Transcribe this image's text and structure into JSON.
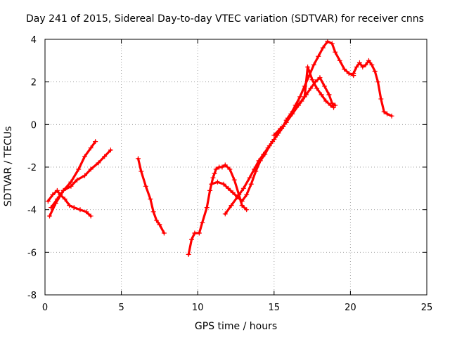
{
  "chart_data": {
    "type": "scatter",
    "title": "Day 241 of 2015, Sidereal Day-to-day VTEC variation (SDTVAR) for receiver cnns",
    "xlabel": "GPS time / hours",
    "ylabel": "SDTVAR / TECUs",
    "xlim": [
      0,
      25
    ],
    "ylim": [
      -8,
      4
    ],
    "xticks": [
      0,
      5,
      10,
      15,
      20,
      25
    ],
    "yticks": [
      -8,
      -6,
      -4,
      -2,
      0,
      2,
      4
    ],
    "grid": true,
    "marker": "+",
    "color": "#ff0000",
    "series": [
      {
        "x": [
          0.3,
          0.7,
          1.2,
          1.7,
          2.2,
          2.6,
          3.0,
          3.3
        ],
        "y": [
          -4.3,
          -3.7,
          -3.1,
          -2.7,
          -2.1,
          -1.5,
          -1.1,
          -0.8
        ]
      },
      {
        "x": [
          0.2,
          0.5,
          0.8,
          1.0,
          1.3,
          1.6,
          1.9,
          2.3,
          2.7,
          3.0
        ],
        "y": [
          -3.6,
          -3.3,
          -3.1,
          -3.3,
          -3.5,
          -3.8,
          -3.9,
          -4.0,
          -4.1,
          -4.3
        ]
      },
      {
        "x": [
          0.4,
          0.8,
          1.2,
          1.7,
          2.1,
          2.6,
          3.0,
          3.5,
          3.9,
          4.3
        ],
        "y": [
          -3.9,
          -3.5,
          -3.1,
          -2.9,
          -2.6,
          -2.4,
          -2.1,
          -1.8,
          -1.5,
          -1.2
        ]
      },
      {
        "x": [
          6.1,
          6.3,
          6.6,
          6.9,
          7.1,
          7.3,
          7.5,
          7.8
        ],
        "y": [
          -1.6,
          -2.2,
          -2.9,
          -3.5,
          -4.1,
          -4.5,
          -4.7,
          -5.1
        ]
      },
      {
        "x": [
          9.4,
          9.6,
          9.8,
          10.1,
          10.3,
          10.6,
          10.8,
          11.0,
          11.1,
          11.2,
          11.4,
          11.6,
          11.8,
          12.1,
          12.4,
          12.7,
          12.9,
          13.2
        ],
        "y": [
          -6.1,
          -5.4,
          -5.1,
          -5.1,
          -4.6,
          -3.9,
          -3.1,
          -2.5,
          -2.3,
          -2.1,
          -2.0,
          -2.0,
          -1.9,
          -2.1,
          -2.6,
          -3.3,
          -3.8,
          -4.0
        ]
      },
      {
        "x": [
          10.9,
          11.3,
          11.7,
          12.0,
          12.3,
          12.6,
          12.9,
          13.2,
          13.5,
          13.8,
          14.1,
          14.4,
          14.7,
          15.0,
          15.3,
          15.6,
          15.9,
          16.2,
          16.5,
          16.8,
          17.1,
          17.4,
          17.7,
          18.0,
          18.3,
          18.6,
          18.8,
          19.0
        ],
        "y": [
          -2.8,
          -2.7,
          -2.8,
          -3.0,
          -3.2,
          -3.4,
          -3.6,
          -3.3,
          -2.8,
          -2.2,
          -1.7,
          -1.4,
          -1.0,
          -0.7,
          -0.4,
          -0.1,
          0.3,
          0.6,
          0.9,
          1.1,
          1.4,
          1.7,
          2.0,
          2.2,
          1.8,
          1.4,
          1.0,
          0.9
        ]
      },
      {
        "x": [
          11.8,
          12.2,
          12.6,
          13.0,
          13.4,
          13.7,
          14.0,
          14.3,
          14.6,
          14.9,
          15.2,
          15.5,
          15.8,
          16.1,
          16.4,
          16.7,
          17.0,
          17.3,
          17.6,
          17.9,
          18.2,
          18.5,
          18.8,
          19.0,
          19.3,
          19.6,
          19.9,
          20.2
        ],
        "y": [
          -4.2,
          -3.8,
          -3.4,
          -3.0,
          -2.5,
          -2.1,
          -1.7,
          -1.4,
          -1.1,
          -0.8,
          -0.5,
          -0.2,
          0.2,
          0.5,
          0.9,
          1.3,
          1.8,
          2.3,
          2.8,
          3.2,
          3.6,
          3.9,
          3.8,
          3.4,
          3.0,
          2.6,
          2.4,
          2.3
        ]
      },
      {
        "x": [
          15.0,
          15.4,
          15.8,
          16.2,
          16.6,
          17.0,
          17.2,
          17.5,
          17.8,
          18.1,
          18.4,
          18.7,
          18.9
        ],
        "y": [
          -0.5,
          -0.2,
          0.1,
          0.5,
          0.9,
          1.3,
          2.7,
          2.1,
          1.7,
          1.4,
          1.1,
          0.9,
          0.8
        ]
      },
      {
        "x": [
          20.2,
          20.4,
          20.6,
          20.8,
          21.0,
          21.2,
          21.4,
          21.6,
          21.8,
          22.0,
          22.2,
          22.4,
          22.7
        ],
        "y": [
          2.4,
          2.7,
          2.9,
          2.7,
          2.8,
          3.0,
          2.8,
          2.5,
          2.0,
          1.2,
          0.6,
          0.5,
          0.4
        ]
      }
    ]
  }
}
